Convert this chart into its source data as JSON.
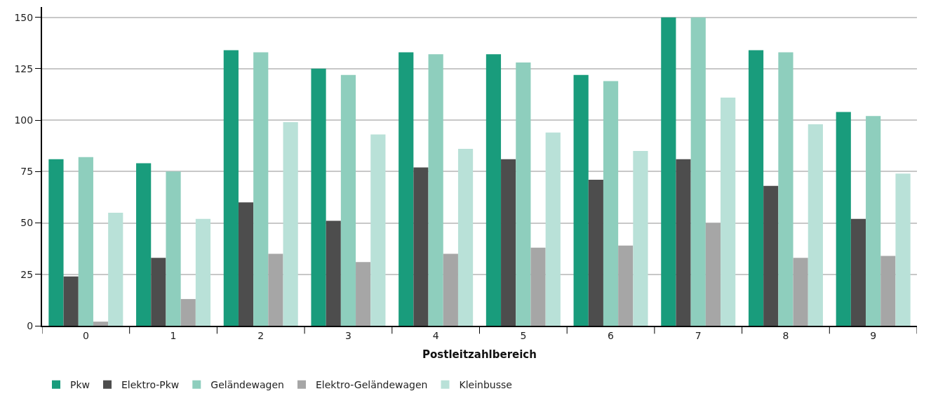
{
  "chart_data": {
    "type": "bar",
    "xlabel": "Postleitzahlbereich",
    "categories": [
      "0",
      "1",
      "2",
      "3",
      "4",
      "5",
      "6",
      "7",
      "8",
      "9"
    ],
    "series": [
      {
        "name": "Pkw",
        "color": "#199c7c",
        "values": [
          81,
          79,
          134,
          125,
          133,
          132,
          122,
          150,
          134,
          104
        ]
      },
      {
        "name": "Elektro-Pkw",
        "color": "#4d4d4d",
        "values": [
          24,
          33,
          60,
          51,
          77,
          81,
          71,
          81,
          68,
          52
        ]
      },
      {
        "name": "Geländewagen",
        "color": "#8ecebd",
        "values": [
          82,
          75,
          133,
          122,
          132,
          128,
          119,
          150,
          133,
          102
        ]
      },
      {
        "name": "Elektro-Geländewagen",
        "color": "#a6a6a6",
        "values": [
          2,
          13,
          35,
          31,
          35,
          38,
          39,
          50,
          33,
          34
        ]
      },
      {
        "name": "Kleinbusse",
        "color": "#b9e1d8",
        "values": [
          55,
          52,
          99,
          93,
          86,
          94,
          85,
          111,
          98,
          74
        ]
      }
    ],
    "ylim": [
      0,
      155
    ],
    "yticks": [
      0,
      25,
      50,
      75,
      100,
      125,
      150
    ],
    "grid": "y",
    "legend": "bottom left"
  }
}
